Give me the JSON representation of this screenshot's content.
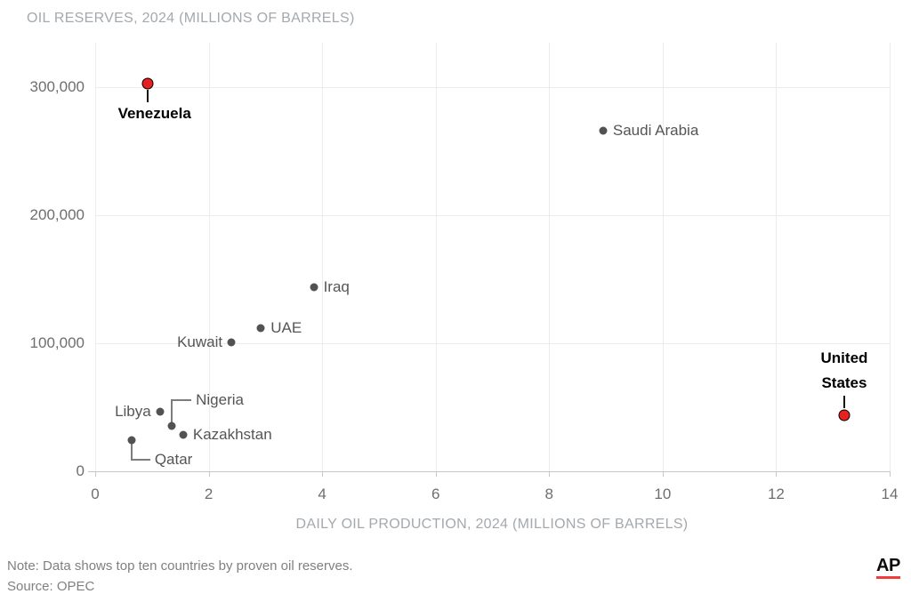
{
  "footer": {
    "note": "Note: Data shows top ten countries by proven oil reserves.",
    "source": "Source: OPEC"
  },
  "logo": {
    "text": "AP",
    "bar_color": "#f23b3b"
  },
  "chart_data": {
    "type": "scatter",
    "title": "OIL RESERVES, 2024 (MILLIONS OF BARRELS)",
    "xlabel": "DAILY OIL PRODUCTION, 2024 (MILLIONS OF BARRELS)",
    "ylabel": "OIL RESERVES, 2024 (MILLIONS OF BARRELS)",
    "xlim": [
      0,
      14
    ],
    "ylim": [
      0,
      335000
    ],
    "grid": true,
    "legend": "none",
    "x_ticks": [
      0,
      2,
      4,
      6,
      8,
      10,
      12,
      14
    ],
    "x_tick_labels": [
      "0",
      "2",
      "4",
      "6",
      "8",
      "10",
      "12",
      "14"
    ],
    "y_ticks": [
      0,
      100000,
      200000,
      300000
    ],
    "y_tick_labels": [
      "0",
      "100,000",
      "200,000",
      "300,000"
    ],
    "colors": {
      "point_default": "#525252",
      "point_highlight": "#e8201f",
      "highlight_outline": "#000000",
      "leader_dark": "#141414",
      "leader_gray": "#7d7d7d"
    },
    "points": [
      {
        "label": "Venezuela",
        "x": 0.92,
        "y": 303000,
        "highlight": true,
        "label_position": "below-leader"
      },
      {
        "label": "Saudi Arabia",
        "x": 8.95,
        "y": 266000,
        "highlight": false,
        "label_position": "right"
      },
      {
        "label": "Iraq",
        "x": 3.85,
        "y": 144000,
        "highlight": false,
        "label_position": "right"
      },
      {
        "label": "UAE",
        "x": 2.92,
        "y": 112000,
        "highlight": false,
        "label_position": "right"
      },
      {
        "label": "Kuwait",
        "x": 2.4,
        "y": 100500,
        "highlight": false,
        "label_position": "left"
      },
      {
        "label": "Libya",
        "x": 1.14,
        "y": 46500,
        "highlight": false,
        "label_position": "left"
      },
      {
        "label": "Nigeria",
        "x": 1.35,
        "y": 35500,
        "highlight": false,
        "label_position": "elbow-up-right"
      },
      {
        "label": "Kazakhstan",
        "x": 1.55,
        "y": 28500,
        "highlight": false,
        "label_position": "right"
      },
      {
        "label": "Qatar",
        "x": 0.64,
        "y": 24500,
        "highlight": false,
        "label_position": "elbow-down-right"
      },
      {
        "label": "United States",
        "x": 13.2,
        "y": 43500,
        "highlight": true,
        "label_position": "above-leader",
        "label_lines": [
          "United",
          "States"
        ]
      }
    ]
  }
}
